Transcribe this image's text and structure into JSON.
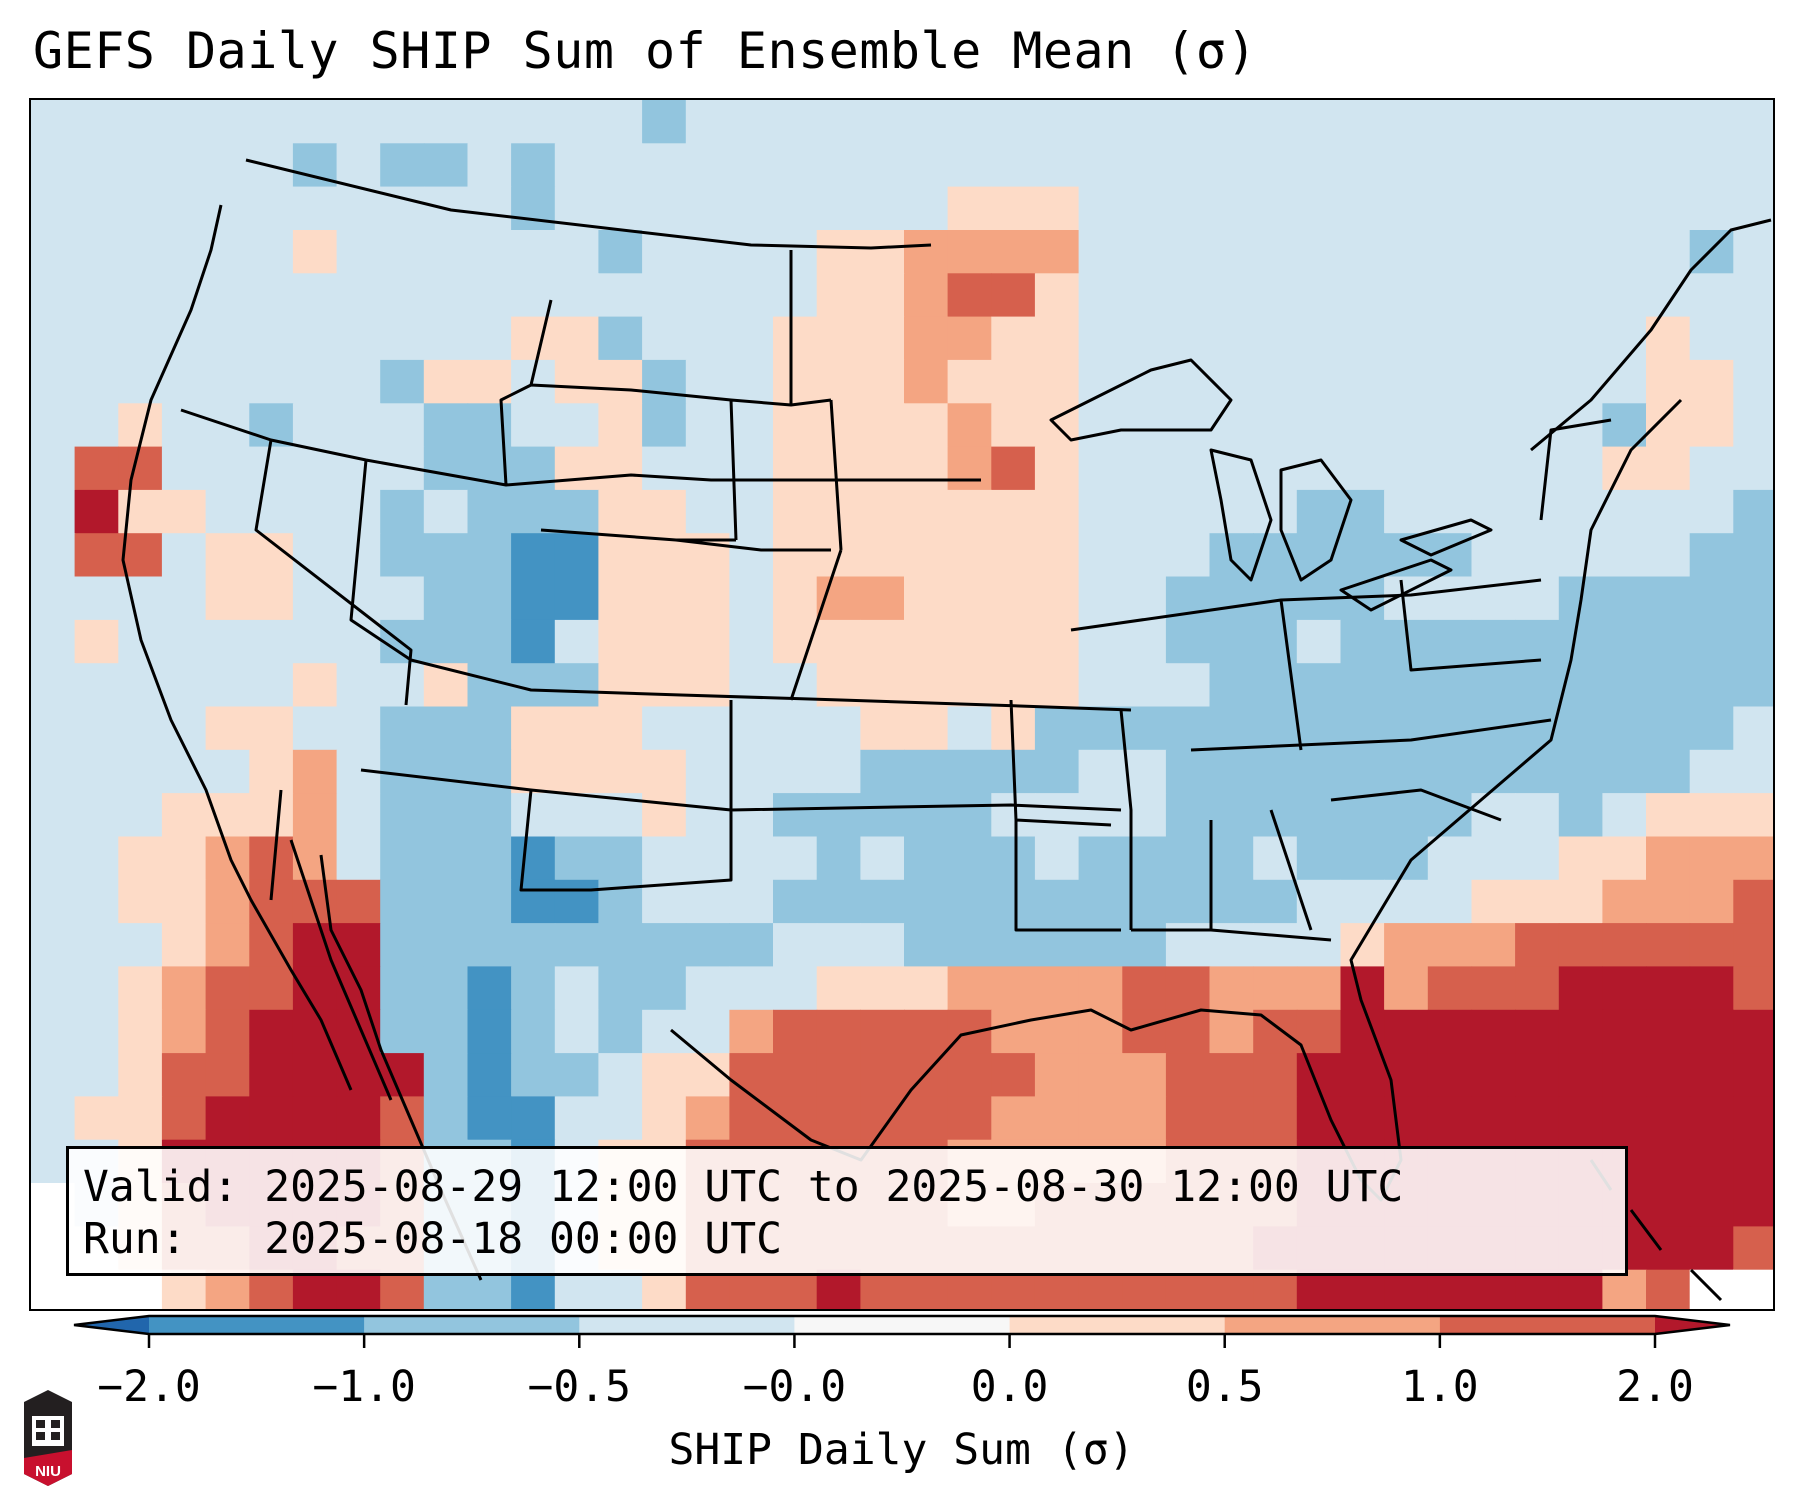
{
  "title": "GEFS Daily SHIP Sum of Ensemble Mean (σ)",
  "info": {
    "valid_line": "Valid: 2025-08-29 12:00 UTC to 2025-08-30 12:00 UTC",
    "run_line": "Run:   2025-08-18 00:00 UTC"
  },
  "colorbar": {
    "label": "SHIP Daily Sum (σ)",
    "ticks": [
      "−2.0",
      "−1.0",
      "−0.5",
      "−0.0",
      "0.0",
      "0.5",
      "1.0",
      "2.0"
    ],
    "bins": [
      {
        "range": "< -2.0",
        "color": "#2166ac"
      },
      {
        "range": "-2.0 to -1.0",
        "color": "#4393c3"
      },
      {
        "range": "-1.0 to -0.5",
        "color": "#92c5de"
      },
      {
        "range": "-0.5 to -0.0",
        "color": "#d1e5f0"
      },
      {
        "range": "-0.0 to 0.0",
        "color": "#f7f7f7"
      },
      {
        "range": "0.0 to 0.5",
        "color": "#fddbc7"
      },
      {
        "range": "0.5 to 1.0",
        "color": "#f4a582"
      },
      {
        "range": "1.0 to 2.0",
        "color": "#d6604d"
      },
      {
        "range": "> 2.0",
        "color": "#b2182b"
      }
    ],
    "extend": "both"
  },
  "logo": {
    "text": "NIU",
    "icon": "niu-logo-icon"
  },
  "chart_data": {
    "type": "heatmap",
    "title": "GEFS Daily SHIP Sum of Ensemble Mean (σ)",
    "region": "Contiguous United States, northern Mexico, Gulf of Mexico, western Atlantic",
    "legend": "bottom colorbar",
    "value_categories": [
      "<-2.0",
      "-2.0..-1.0",
      "-1.0..-0.5",
      "-0.5..-0.0",
      "-0.0..0.0",
      "0.0..0.5",
      "0.5..1.0",
      "1.0..2.0",
      ">2.0"
    ],
    "grid_note": "coarse category index per cell (0-8 per value_categories; 9 = no data), rows north to south, cols west to east",
    "grid": [
      "3333333333333323333333333333333333333333",
      "3333332322323333333333333333333333333333",
      "3333333333323333333335553333333333333333",
      "3333335333333233335566663333333333333323",
      "3333333333333333335567753333333333333333",
      "3333333333355233355566553333333333333533",
      "3333333325535523355565553333333333333553",
      "3353323332233523355556553333333333332553",
      "3773333332225533355556753333333333335533",
      "3855333323222553355555553333322333333332",
      "3773553322211555355555553332222223333322",
      "3333553332211555356655553322222333322222",
      "3533333322213555355555553322232222222222",
      "3333335335222555335555553332222222222222",
      "3333553322255533333553522222222222222223",
      "3333356322255553333222223322222222222233",
      "3335556322233353322222333322222223323555",
      "3355676322212233332322232222322233355666",
      "3355677722211233322222222222233335556667",
      "3335678822222222233322222233335666777777",
      "3356778822123223335556666776668677788887",
      "3356788822123233677777666776778888888888",
      "3357788882122355777777766677788888888888",
      "3557888872113356777777666677788888888888",
      "3358888872213557777776666677788888888888",
      "9357888872213557777776677777788888888888",
      "9957788772213557777777777777888888888887",
      "9995678872213357778777777777788888886799"
    ]
  }
}
